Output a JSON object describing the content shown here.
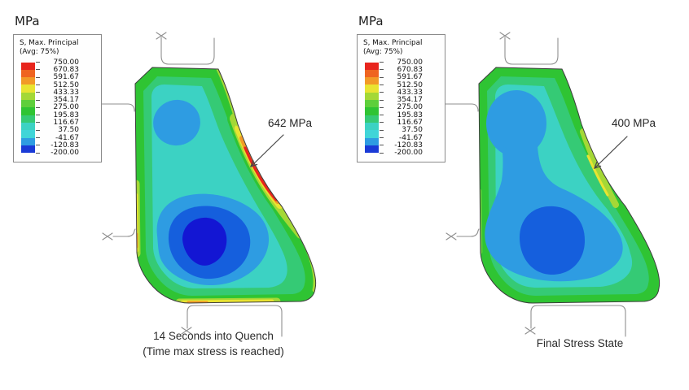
{
  "figure": {
    "background": "#ffffff"
  },
  "panels": [
    {
      "unit_label": "MPa",
      "legend": {
        "title": "S, Max. Principal",
        "subtitle": "(Avg: 75%)"
      },
      "annotation": "642 MPa",
      "caption_lines": [
        "14 Seconds into Quench",
        "(Time max stress is reached)"
      ]
    },
    {
      "unit_label": "MPa",
      "legend": {
        "title": "S, Max. Principal",
        "subtitle": "(Avg: 75%)"
      },
      "annotation": "400 MPa",
      "caption_lines": [
        "Final Stress State"
      ]
    }
  ],
  "legend_scale": {
    "values": [
      "750.00",
      "670.83",
      "591.67",
      "512.50",
      "433.33",
      "354.17",
      "275.00",
      "195.83",
      "116.67",
      "37.50",
      "-41.67",
      "-120.83",
      "-200.00"
    ],
    "colors": [
      "#e8251d",
      "#ef6420",
      "#f29a27",
      "#e9e431",
      "#a4d836",
      "#5ecf3b",
      "#2fc433",
      "#35ca75",
      "#3cd2c3",
      "#40d5d8",
      "#2e9ce2",
      "#1a3ad6"
    ]
  },
  "palette": {
    "green": "#2fc433",
    "light_green": "#5ecf3b",
    "teal": "#35ca75",
    "cyan": "#3cd2c3",
    "light_blue": "#2e9ce2",
    "blue": "#155fdd",
    "dark_blue": "#1316d3",
    "lime": "#a4d836",
    "yellow": "#e9e431",
    "orange": "#f29a27",
    "red": "#e8251d"
  },
  "chart_data": [
    {
      "type": "heatmap",
      "title": "14 Seconds into Quench (Time max stress is reached)",
      "field": "S, Max. Principal (Avg: 75%)",
      "units": "MPa",
      "contour_levels": [
        750.0,
        670.83,
        591.67,
        512.5,
        433.33,
        354.17,
        275.0,
        195.83,
        116.67,
        37.5,
        -41.67,
        -120.83,
        -200.0
      ],
      "annotated_value": 642,
      "annotation_label": "642 MPa",
      "legend_position": "upper-left",
      "notes": "Peak tensile stress (red band) on concave right edge; compressive dark-blue core ~-200 MPa in lower interior."
    },
    {
      "type": "heatmap",
      "title": "Final Stress State",
      "field": "S, Max. Principal (Avg: 75%)",
      "units": "MPa",
      "contour_levels": [
        750.0,
        670.83,
        591.67,
        512.5,
        433.33,
        354.17,
        275.0,
        195.83,
        116.67,
        37.5,
        -41.67,
        -120.83,
        -200.0
      ],
      "annotated_value": 400,
      "annotation_label": "400 MPa",
      "legend_position": "upper-left",
      "notes": "Yellow-green band ~400 MPa on concave right edge; blue compressive region in lower interior."
    }
  ]
}
